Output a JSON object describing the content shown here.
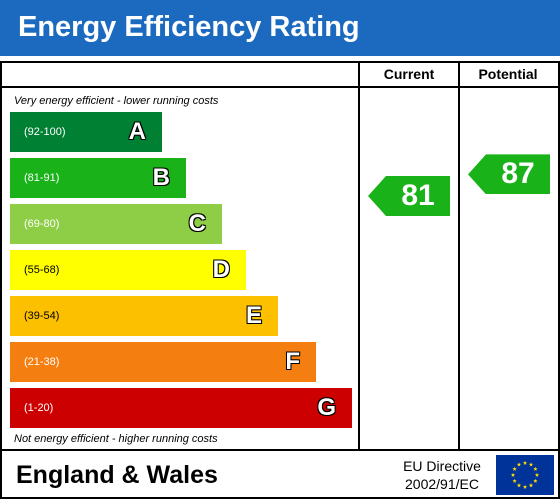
{
  "header": {
    "title": "Energy Efficiency Rating",
    "background": "#1b6abf"
  },
  "columns": {
    "current": "Current",
    "potential": "Potential"
  },
  "notes": {
    "top": "Very energy efficient - lower running costs",
    "bottom": "Not energy efficient - higher running costs"
  },
  "chart_data": {
    "type": "bar",
    "categories": [
      "A",
      "B",
      "C",
      "D",
      "E",
      "F",
      "G"
    ],
    "ranges": [
      "(92-100)",
      "(81-91)",
      "(69-80)",
      "(55-68)",
      "(39-54)",
      "(21-38)",
      "(1-20)"
    ],
    "colors": [
      "#008033",
      "#19b219",
      "#8dce46",
      "#ffff00",
      "#fcc000",
      "#f47e0f",
      "#cc0000"
    ],
    "current": {
      "value": 81,
      "band": "B",
      "color": "#19b219"
    },
    "potential": {
      "value": 87,
      "band": "B",
      "color": "#19b219"
    }
  },
  "footer": {
    "region": "England & Wales",
    "directive_line1": "EU Directive",
    "directive_line2": "2002/91/EC",
    "flag_icon": "eu-flag-icon",
    "flag_color": "#003399",
    "star_color": "#ffdd00"
  }
}
